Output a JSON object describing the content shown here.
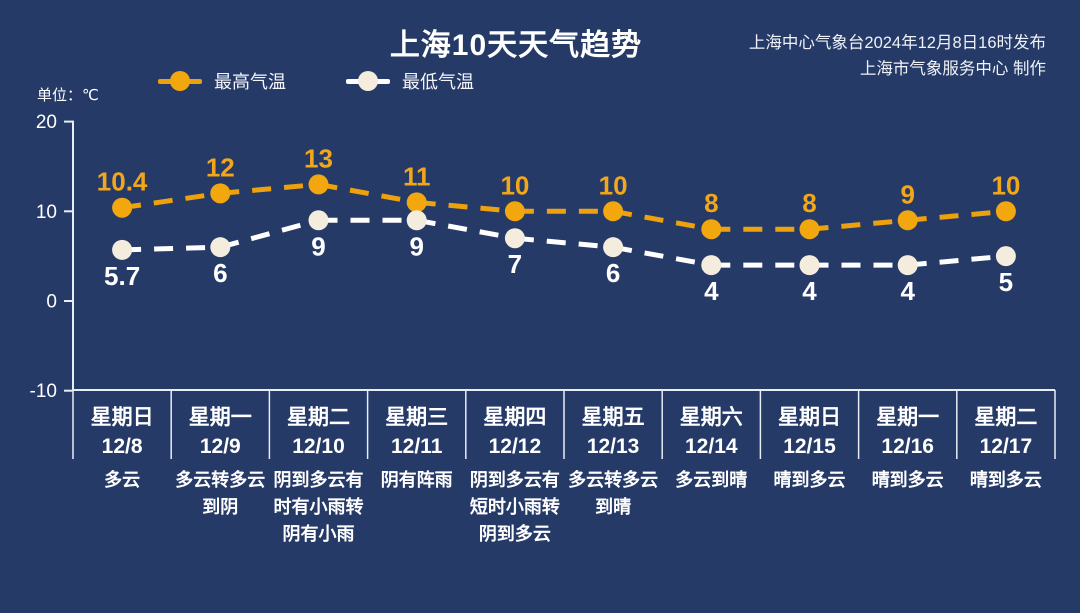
{
  "header": {
    "title": "上海10天天气趋势",
    "source_line1": "上海中心气象台2024年12月8日16时发布",
    "source_line2": "上海市气象服务中心 制作"
  },
  "unit_label": "单位：℃",
  "legend": {
    "high_label": "最高气温",
    "low_label": "最低气温"
  },
  "colors": {
    "background": "#263a68",
    "high_line": "#eda10c",
    "high_dot": "#f2a70f",
    "high_value_text": "#f2a71b",
    "low_line": "#ffffff",
    "low_dot": "#f4edde",
    "low_value_text": "#ffffff",
    "axis": "#e8ecf5",
    "divider": "#e8ecf5",
    "text": "#ffffff"
  },
  "chart_data": {
    "type": "line",
    "title": "上海10天天气趋势",
    "ylabel": "单位：℃",
    "ylim": [
      -10,
      20
    ],
    "yticks": [
      20,
      10,
      0,
      -10
    ],
    "grid": false,
    "legend_position": "top-left",
    "categories": [
      "12/8",
      "12/9",
      "12/10",
      "12/11",
      "12/12",
      "12/13",
      "12/14",
      "12/15",
      "12/16",
      "12/17"
    ],
    "series": [
      {
        "name": "最高气温",
        "values": [
          10.4,
          12,
          13,
          11,
          10,
          10,
          8,
          8,
          9,
          10
        ],
        "labels": [
          "10.4",
          "12",
          "13",
          "11",
          "10",
          "10",
          "8",
          "8",
          "9",
          "10"
        ],
        "style": "dashed"
      },
      {
        "name": "最低气温",
        "values": [
          5.7,
          6,
          9,
          9,
          7,
          6,
          4,
          4,
          4,
          5
        ],
        "labels": [
          "5.7",
          "6",
          "9",
          "9",
          "7",
          "6",
          "4",
          "4",
          "4",
          "5"
        ],
        "style": "dashed"
      }
    ]
  },
  "columns": [
    {
      "day": "星期日",
      "date": "12/8",
      "weather": [
        "多云"
      ]
    },
    {
      "day": "星期一",
      "date": "12/9",
      "weather": [
        "多云转多云",
        "到阴"
      ]
    },
    {
      "day": "星期二",
      "date": "12/10",
      "weather": [
        "阴到多云有",
        "时有小雨转",
        "阴有小雨"
      ]
    },
    {
      "day": "星期三",
      "date": "12/11",
      "weather": [
        "阴有阵雨"
      ]
    },
    {
      "day": "星期四",
      "date": "12/12",
      "weather": [
        "阴到多云有",
        "短时小雨转",
        "阴到多云"
      ]
    },
    {
      "day": "星期五",
      "date": "12/13",
      "weather": [
        "多云转多云",
        "到晴"
      ]
    },
    {
      "day": "星期六",
      "date": "12/14",
      "weather": [
        "多云到晴"
      ]
    },
    {
      "day": "星期日",
      "date": "12/15",
      "weather": [
        "晴到多云"
      ]
    },
    {
      "day": "星期一",
      "date": "12/16",
      "weather": [
        "晴到多云"
      ]
    },
    {
      "day": "星期二",
      "date": "12/17",
      "weather": [
        "晴到多云"
      ]
    }
  ]
}
